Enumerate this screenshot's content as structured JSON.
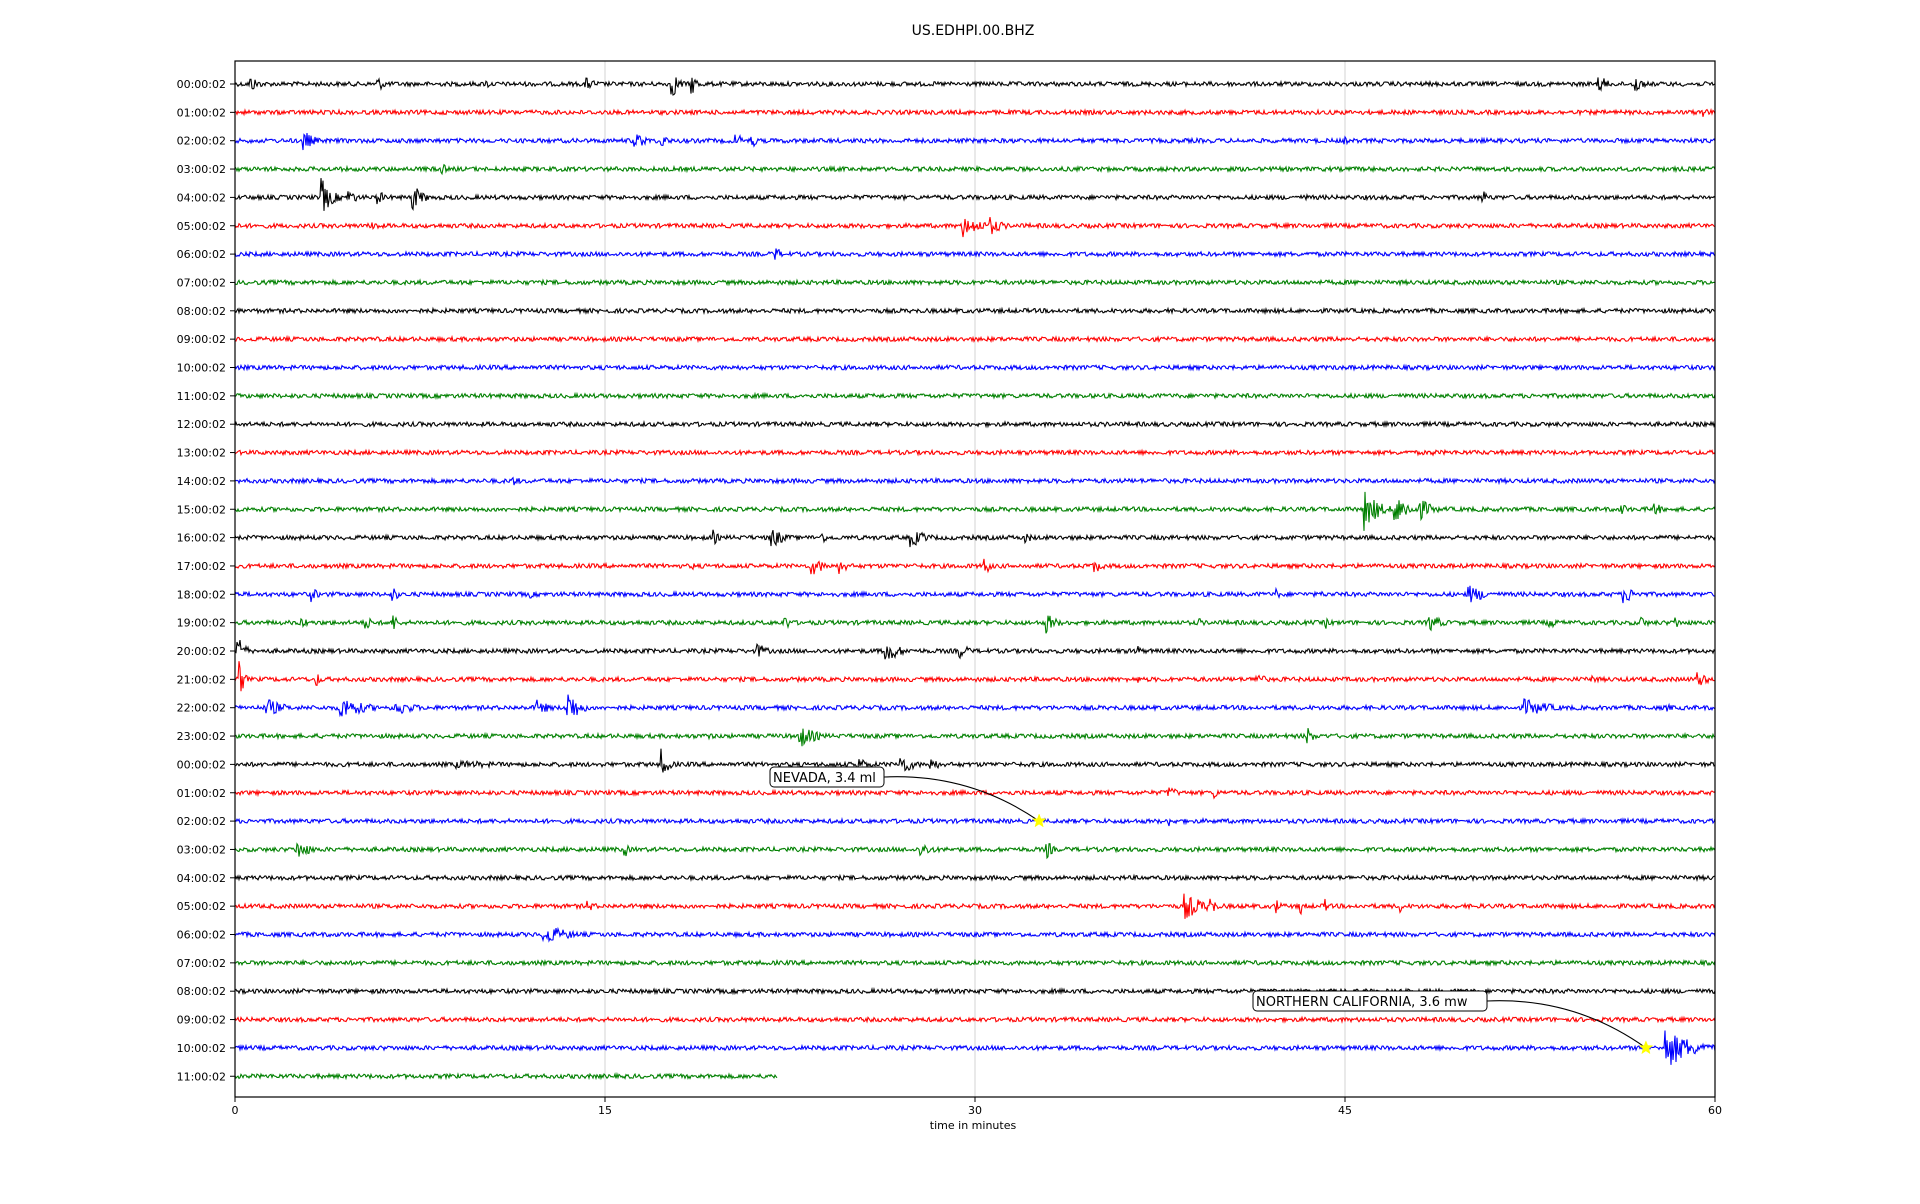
{
  "chart_data": {
    "type": "line",
    "title": "US.EDHPI.00.BHZ",
    "xlabel": "time in minutes",
    "ylabel": "",
    "xlim": [
      0,
      60
    ],
    "x_ticks": [
      0,
      15,
      30,
      45,
      60
    ],
    "grid": "vertical",
    "trace_colors": [
      "#000000",
      "#ff0000",
      "#0000ff",
      "#008000"
    ],
    "row_labels": [
      "00:00:02",
      "01:00:02",
      "02:00:02",
      "03:00:02",
      "04:00:02",
      "05:00:02",
      "06:00:02",
      "07:00:02",
      "08:00:02",
      "09:00:02",
      "10:00:02",
      "11:00:02",
      "12:00:02",
      "13:00:02",
      "14:00:02",
      "15:00:02",
      "16:00:02",
      "17:00:02",
      "18:00:02",
      "19:00:02",
      "20:00:02",
      "21:00:02",
      "22:00:02",
      "23:00:02",
      "00:00:02",
      "01:00:02",
      "02:00:02",
      "03:00:02",
      "04:00:02",
      "05:00:02",
      "06:00:02",
      "07:00:02",
      "08:00:02",
      "09:00:02",
      "10:00:02",
      "11:00:02"
    ],
    "last_row_end_minute": 22,
    "bursts": [
      {
        "row": 0,
        "t": 0.6,
        "amp": 9,
        "dur": 0.6
      },
      {
        "row": 0,
        "t": 5.8,
        "amp": 7,
        "dur": 0.6
      },
      {
        "row": 0,
        "t": 10.2,
        "amp": 6,
        "dur": 0.2
      },
      {
        "row": 0,
        "t": 14.2,
        "amp": 7,
        "dur": 0.8
      },
      {
        "row": 0,
        "t": 17.7,
        "amp": 16,
        "dur": 0.4
      },
      {
        "row": 0,
        "t": 18.5,
        "amp": 12,
        "dur": 0.4
      },
      {
        "row": 0,
        "t": 55.3,
        "amp": 10,
        "dur": 0.5
      },
      {
        "row": 0,
        "t": 56.8,
        "amp": 12,
        "dur": 0.3
      },
      {
        "row": 1,
        "t": 59.5,
        "amp": 8,
        "dur": 0.4
      },
      {
        "row": 2,
        "t": 2.8,
        "amp": 11,
        "dur": 0.6
      },
      {
        "row": 2,
        "t": 16.2,
        "amp": 9,
        "dur": 0.8
      },
      {
        "row": 2,
        "t": 17.3,
        "amp": 8,
        "dur": 0.4
      },
      {
        "row": 2,
        "t": 20.3,
        "amp": 9,
        "dur": 0.4
      },
      {
        "row": 2,
        "t": 20.9,
        "amp": 10,
        "dur": 0.3
      },
      {
        "row": 2,
        "t": 45.0,
        "amp": 4,
        "dur": 0.3
      },
      {
        "row": 3,
        "t": 8.4,
        "amp": 7,
        "dur": 0.2
      },
      {
        "row": 4,
        "t": 3.5,
        "amp": 20,
        "dur": 0.6
      },
      {
        "row": 4,
        "t": 4.6,
        "amp": 9,
        "dur": 0.5
      },
      {
        "row": 4,
        "t": 5.8,
        "amp": 8,
        "dur": 0.4
      },
      {
        "row": 4,
        "t": 7.2,
        "amp": 14,
        "dur": 0.6
      },
      {
        "row": 4,
        "t": 43.4,
        "amp": 4,
        "dur": 0.3
      },
      {
        "row": 4,
        "t": 50.6,
        "amp": 8,
        "dur": 0.3
      },
      {
        "row": 5,
        "t": 5.6,
        "amp": 6,
        "dur": 0.5
      },
      {
        "row": 5,
        "t": 29.5,
        "amp": 12,
        "dur": 1.2
      },
      {
        "row": 5,
        "t": 30.6,
        "amp": 10,
        "dur": 0.8
      },
      {
        "row": 6,
        "t": 21.9,
        "amp": 9,
        "dur": 0.3
      },
      {
        "row": 13,
        "t": 48.5,
        "amp": 4,
        "dur": 0.5
      },
      {
        "row": 14,
        "t": 11.2,
        "amp": 6,
        "dur": 0.6
      },
      {
        "row": 15,
        "t": 45.8,
        "amp": 22,
        "dur": 0.8
      },
      {
        "row": 15,
        "t": 47.0,
        "amp": 16,
        "dur": 1.0
      },
      {
        "row": 15,
        "t": 48.0,
        "amp": 12,
        "dur": 0.8
      },
      {
        "row": 15,
        "t": 56.2,
        "amp": 8,
        "dur": 0.3
      },
      {
        "row": 15,
        "t": 57.5,
        "amp": 10,
        "dur": 0.4
      },
      {
        "row": 16,
        "t": 19.4,
        "amp": 8,
        "dur": 0.3
      },
      {
        "row": 16,
        "t": 21.7,
        "amp": 12,
        "dur": 0.8
      },
      {
        "row": 16,
        "t": 23.8,
        "amp": 6,
        "dur": 0.4
      },
      {
        "row": 16,
        "t": 27.4,
        "amp": 10,
        "dur": 1.0
      },
      {
        "row": 16,
        "t": 32.0,
        "amp": 6,
        "dur": 0.6
      },
      {
        "row": 17,
        "t": 18.6,
        "amp": 4,
        "dur": 0.3
      },
      {
        "row": 17,
        "t": 23.4,
        "amp": 10,
        "dur": 0.8
      },
      {
        "row": 17,
        "t": 24.5,
        "amp": 8,
        "dur": 0.6
      },
      {
        "row": 17,
        "t": 30.4,
        "amp": 10,
        "dur": 0.3
      },
      {
        "row": 17,
        "t": 34.8,
        "amp": 9,
        "dur": 0.5
      },
      {
        "row": 18,
        "t": 3.1,
        "amp": 8,
        "dur": 0.4
      },
      {
        "row": 18,
        "t": 6.4,
        "amp": 9,
        "dur": 0.3
      },
      {
        "row": 18,
        "t": 12.0,
        "amp": 4,
        "dur": 0.3
      },
      {
        "row": 18,
        "t": 42.2,
        "amp": 6,
        "dur": 0.3
      },
      {
        "row": 18,
        "t": 44.0,
        "amp": 4,
        "dur": 0.3
      },
      {
        "row": 18,
        "t": 50.0,
        "amp": 10,
        "dur": 1.2
      },
      {
        "row": 18,
        "t": 56.3,
        "amp": 10,
        "dur": 0.8
      },
      {
        "row": 19,
        "t": 2.7,
        "amp": 7,
        "dur": 0.4
      },
      {
        "row": 19,
        "t": 5.3,
        "amp": 8,
        "dur": 0.4
      },
      {
        "row": 19,
        "t": 6.4,
        "amp": 10,
        "dur": 0.3
      },
      {
        "row": 19,
        "t": 22.3,
        "amp": 8,
        "dur": 0.4
      },
      {
        "row": 19,
        "t": 32.9,
        "amp": 11,
        "dur": 0.6
      },
      {
        "row": 19,
        "t": 39.1,
        "amp": 5,
        "dur": 0.3
      },
      {
        "row": 19,
        "t": 44.2,
        "amp": 7,
        "dur": 0.3
      },
      {
        "row": 19,
        "t": 48.4,
        "amp": 10,
        "dur": 0.8
      },
      {
        "row": 19,
        "t": 53.3,
        "amp": 9,
        "dur": 0.3
      },
      {
        "row": 19,
        "t": 57.0,
        "amp": 7,
        "dur": 0.4
      },
      {
        "row": 19,
        "t": 58.4,
        "amp": 8,
        "dur": 0.2
      },
      {
        "row": 20,
        "t": 0.1,
        "amp": 24,
        "dur": 0.3
      },
      {
        "row": 20,
        "t": 21.2,
        "amp": 8,
        "dur": 0.6
      },
      {
        "row": 20,
        "t": 26.4,
        "amp": 13,
        "dur": 0.8
      },
      {
        "row": 20,
        "t": 29.4,
        "amp": 8,
        "dur": 0.6
      },
      {
        "row": 20,
        "t": 36.5,
        "amp": 11,
        "dur": 0.2
      },
      {
        "row": 21,
        "t": 0.2,
        "amp": 20,
        "dur": 0.2
      },
      {
        "row": 21,
        "t": 3.3,
        "amp": 8,
        "dur": 0.3
      },
      {
        "row": 21,
        "t": 36.5,
        "amp": 6,
        "dur": 0.3
      },
      {
        "row": 21,
        "t": 41.4,
        "amp": 10,
        "dur": 0.4
      },
      {
        "row": 21,
        "t": 55.0,
        "amp": 6,
        "dur": 0.3
      },
      {
        "row": 21,
        "t": 59.3,
        "amp": 9,
        "dur": 0.6
      },
      {
        "row": 22,
        "t": 1.3,
        "amp": 10,
        "dur": 1.0
      },
      {
        "row": 22,
        "t": 4.3,
        "amp": 12,
        "dur": 1.5
      },
      {
        "row": 22,
        "t": 6.5,
        "amp": 9,
        "dur": 1.2
      },
      {
        "row": 22,
        "t": 12.2,
        "amp": 9,
        "dur": 0.8
      },
      {
        "row": 22,
        "t": 13.5,
        "amp": 20,
        "dur": 0.6
      },
      {
        "row": 22,
        "t": 52.3,
        "amp": 9,
        "dur": 1.8
      },
      {
        "row": 22,
        "t": 58.1,
        "amp": 4,
        "dur": 0.5
      },
      {
        "row": 23,
        "t": 19.2,
        "amp": 6,
        "dur": 0.2
      },
      {
        "row": 23,
        "t": 22.8,
        "amp": 14,
        "dur": 1.0
      },
      {
        "row": 23,
        "t": 43.5,
        "amp": 10,
        "dur": 0.3
      },
      {
        "row": 24,
        "t": 9.0,
        "amp": 4,
        "dur": 5.0
      },
      {
        "row": 24,
        "t": 17.3,
        "amp": 16,
        "dur": 0.4
      },
      {
        "row": 24,
        "t": 25.2,
        "amp": 9,
        "dur": 0.6
      },
      {
        "row": 24,
        "t": 27.0,
        "amp": 11,
        "dur": 0.8
      },
      {
        "row": 24,
        "t": 28.2,
        "amp": 8,
        "dur": 0.5
      },
      {
        "row": 25,
        "t": 37.8,
        "amp": 8,
        "dur": 0.6
      },
      {
        "row": 25,
        "t": 39.7,
        "amp": 6,
        "dur": 0.4
      },
      {
        "row": 26,
        "t": 37.9,
        "amp": 6,
        "dur": 0.3
      },
      {
        "row": 27,
        "t": 2.5,
        "amp": 11,
        "dur": 0.8
      },
      {
        "row": 27,
        "t": 15.8,
        "amp": 9,
        "dur": 0.2
      },
      {
        "row": 27,
        "t": 27.8,
        "amp": 8,
        "dur": 0.8
      },
      {
        "row": 27,
        "t": 32.9,
        "amp": 11,
        "dur": 0.3
      },
      {
        "row": 29,
        "t": 14.3,
        "amp": 6,
        "dur": 0.6
      },
      {
        "row": 29,
        "t": 38.5,
        "amp": 14,
        "dur": 1.2
      },
      {
        "row": 29,
        "t": 39.5,
        "amp": 14,
        "dur": 0.3
      },
      {
        "row": 29,
        "t": 42.2,
        "amp": 10,
        "dur": 0.2
      },
      {
        "row": 29,
        "t": 43.2,
        "amp": 10,
        "dur": 0.2
      },
      {
        "row": 29,
        "t": 44.2,
        "amp": 8,
        "dur": 0.2
      },
      {
        "row": 29,
        "t": 47.2,
        "amp": 8,
        "dur": 0.2
      },
      {
        "row": 30,
        "t": 12.5,
        "amp": 11,
        "dur": 1.6
      },
      {
        "row": 27,
        "t": 43.0,
        "amp": 3,
        "dur": 0.3
      },
      {
        "row": 34,
        "t": 58.0,
        "amp": 22,
        "dur": 1.6
      }
    ],
    "annotations": [
      {
        "text": "NEVADA, 3.4 ml",
        "row": 26,
        "t": 32.6
      },
      {
        "text": "NORTHERN CALIFORNIA, 3.6 mw",
        "row": 34,
        "t": 57.2
      }
    ],
    "marker_color": "#ffff00"
  }
}
